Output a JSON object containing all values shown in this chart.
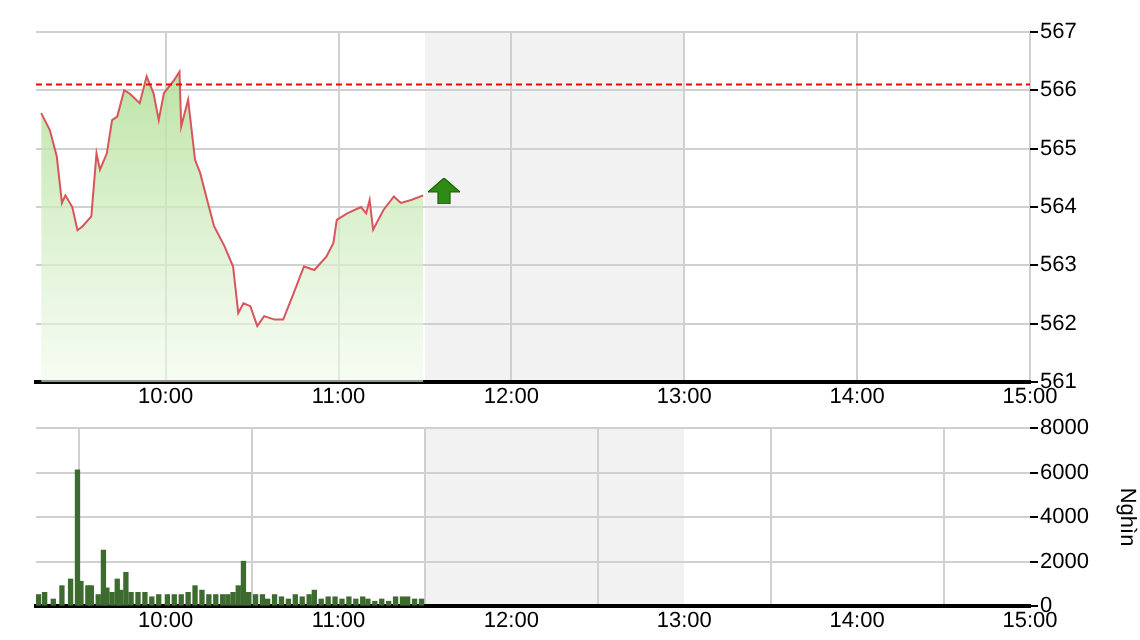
{
  "chart_data": [
    {
      "type": "area",
      "x": [
        9.28,
        9.33,
        9.37,
        9.4,
        9.42,
        9.46,
        9.49,
        9.52,
        9.57,
        9.6,
        9.62,
        9.66,
        9.69,
        9.72,
        9.76,
        9.79,
        9.85,
        9.89,
        9.93,
        9.96,
        9.99,
        10.05,
        10.08,
        10.09,
        10.13,
        10.17,
        10.2,
        10.24,
        10.28,
        10.34,
        10.39,
        10.42,
        10.45,
        10.49,
        10.53,
        10.57,
        10.63,
        10.68,
        10.74,
        10.8,
        10.86,
        10.93,
        10.97,
        10.99,
        11.05,
        11.13,
        11.16,
        11.18,
        11.2,
        11.26,
        11.32,
        11.36,
        11.42,
        11.49
      ],
      "series": [
        {
          "color": "#d9545c",
          "values": [
            565.61,
            565.32,
            564.87,
            564.07,
            564.2,
            564.0,
            563.6,
            563.67,
            563.84,
            564.92,
            564.64,
            564.92,
            565.49,
            565.55,
            566.0,
            565.95,
            565.78,
            566.24,
            565.95,
            565.49,
            565.95,
            566.18,
            566.32,
            565.38,
            565.84,
            564.81,
            564.58,
            564.12,
            563.67,
            563.33,
            562.98,
            562.18,
            562.35,
            562.3,
            561.96,
            562.13,
            562.07,
            562.07,
            562.52,
            562.98,
            562.92,
            563.15,
            563.38,
            563.78,
            563.89,
            564.0,
            563.89,
            564.12,
            563.61,
            563.95,
            564.18,
            564.07,
            564.12,
            564.2
          ]
        }
      ],
      "xlim": [
        9.25,
        15
      ],
      "xticks": [
        {
          "value": 10,
          "label": "10:00"
        },
        {
          "value": 11,
          "label": "11:00"
        },
        {
          "value": 12,
          "label": "12:00"
        },
        {
          "value": 13,
          "label": "13:00"
        },
        {
          "value": 14,
          "label": "14:00"
        },
        {
          "value": 15,
          "label": "15:00"
        }
      ],
      "ylim": [
        561,
        567
      ],
      "yticks": [
        561,
        562,
        563,
        564,
        565,
        566,
        567
      ],
      "grid": true,
      "ref_lines": [
        {
          "axis": "y",
          "value": 566.1,
          "color": "#ff0000",
          "line_style": "dashed"
        }
      ],
      "bands": [
        {
          "axis": "x",
          "from": 11.5,
          "to": 13,
          "color": "#f2f2f2"
        }
      ]
    },
    {
      "type": "bar",
      "x": [
        9.265,
        9.3,
        9.35,
        9.4,
        9.45,
        9.49,
        9.51,
        9.55,
        9.57,
        9.61,
        9.64,
        9.66,
        9.69,
        9.72,
        9.74,
        9.77,
        9.8,
        9.84,
        9.88,
        9.92,
        9.96,
        10.01,
        10.05,
        10.09,
        10.13,
        10.17,
        10.21,
        10.25,
        10.29,
        10.33,
        10.36,
        10.39,
        10.42,
        10.45,
        10.48,
        10.52,
        10.56,
        10.59,
        10.63,
        10.67,
        10.71,
        10.75,
        10.79,
        10.83,
        10.86,
        10.9,
        10.94,
        10.98,
        11.02,
        11.06,
        11.1,
        11.14,
        11.17,
        11.21,
        11.25,
        11.29,
        11.33,
        11.37,
        11.4,
        11.44,
        11.48
      ],
      "series": [
        {
          "color": "#3d6b2f",
          "values": [
            500,
            600,
            300,
            900,
            1200,
            6100,
            1100,
            900,
            900,
            500,
            2500,
            800,
            600,
            1200,
            700,
            1500,
            600,
            600,
            600,
            400,
            500,
            500,
            500,
            500,
            600,
            900,
            700,
            500,
            500,
            500,
            500,
            600,
            900,
            2000,
            600,
            500,
            500,
            300,
            500,
            400,
            300,
            500,
            400,
            500,
            700,
            300,
            400,
            400,
            300,
            400,
            300,
            400,
            300,
            200,
            300,
            200,
            400,
            400,
            400,
            300,
            300
          ]
        }
      ],
      "xlim": [
        9.25,
        15
      ],
      "xticks": [
        {
          "value": 10,
          "label": "10:00"
        },
        {
          "value": 11,
          "label": "11:00"
        },
        {
          "value": 12,
          "label": "12:00"
        },
        {
          "value": 13,
          "label": "13:00"
        },
        {
          "value": 14,
          "label": "14:00"
        },
        {
          "value": 15,
          "label": "15:00"
        }
      ],
      "ylim": [
        0,
        8000
      ],
      "yticks": [
        0,
        2000,
        4000,
        6000,
        8000
      ],
      "grid": true,
      "ylabel": "Nghìn",
      "bands": [
        {
          "axis": "x",
          "from": 11.5,
          "to": 13,
          "color": "#f2f2f2"
        }
      ]
    }
  ]
}
